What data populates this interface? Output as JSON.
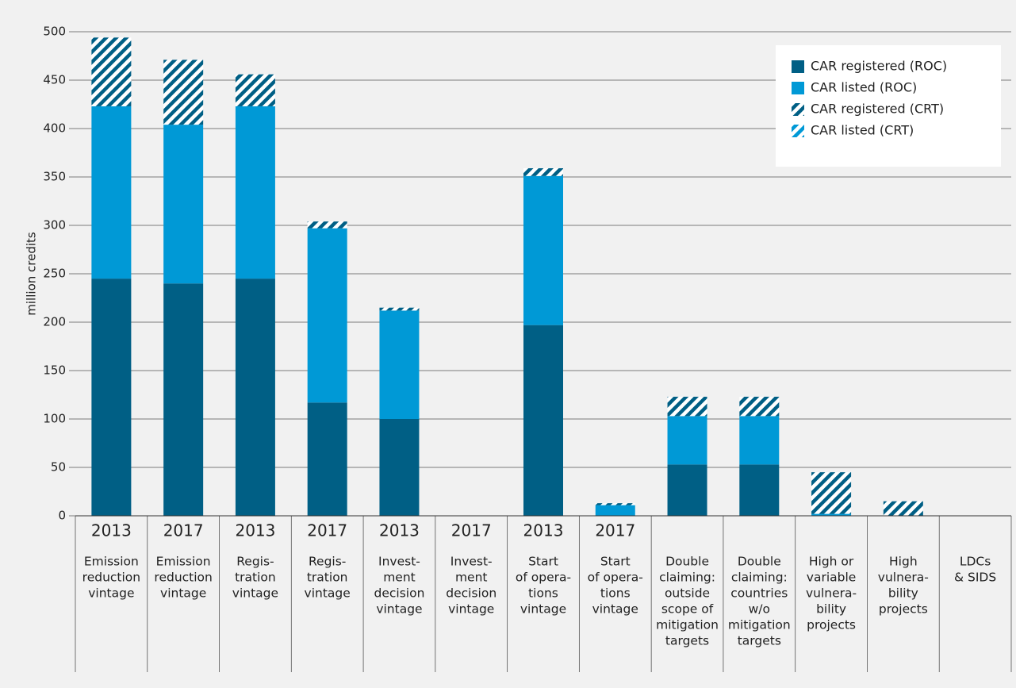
{
  "chart_data": {
    "type": "bar",
    "stacked": true,
    "ylabel": "million credits",
    "years": [
      2013,
      2017,
      2013,
      2017,
      2013,
      2017,
      2013,
      2017,
      null,
      null,
      null,
      null,
      null
    ],
    "categories": [
      [
        "Emission",
        "reduction",
        "vintage"
      ],
      [
        "Emission",
        "reduction",
        "vintage"
      ],
      [
        "Regis-",
        "tration",
        "vintage"
      ],
      [
        "Regis-",
        "tration",
        "vintage"
      ],
      [
        "Invest-",
        "ment",
        "decision",
        "vintage"
      ],
      [
        "Invest-",
        "ment",
        "decision",
        "vintage"
      ],
      [
        "Start",
        "of opera-",
        "tions",
        "vintage"
      ],
      [
        "Start",
        "of opera-",
        "tions",
        "vintage"
      ],
      [
        "Double",
        "claiming:",
        "outside",
        "scope of",
        "mitigation",
        "targets"
      ],
      [
        "Double",
        "claiming:",
        "countries",
        "w/o",
        "mitigation",
        "targets"
      ],
      [
        "High or",
        "variable",
        "vulnera-",
        "bility",
        "projects"
      ],
      [
        "High",
        "vulnera-",
        "bility",
        "projects"
      ],
      [
        "LDCs",
        "& SIDS"
      ]
    ],
    "series": [
      {
        "name": "CAR registered (ROC)",
        "color": "#005f85",
        "hatch": false,
        "values": [
          245,
          240,
          245,
          117,
          100,
          0,
          197,
          0,
          53,
          53,
          0,
          0,
          0
        ]
      },
      {
        "name": "CAR listed (ROC)",
        "color": "#0099d6",
        "hatch": false,
        "values": [
          178,
          164,
          178,
          180,
          112,
          0,
          154,
          11,
          50,
          50,
          2,
          0,
          0
        ]
      },
      {
        "name": "CAR registered (CRT)",
        "color": "#005f85",
        "hatch": true,
        "values": [
          71,
          67,
          33,
          7,
          3,
          0,
          8,
          2,
          20,
          20,
          43,
          15,
          0
        ]
      },
      {
        "name": "CAR listed (CRT)",
        "color": "#0099d6",
        "hatch": true,
        "values": [
          0,
          0,
          0,
          0,
          0,
          0,
          0,
          0,
          0,
          0,
          0,
          0,
          0
        ]
      }
    ],
    "ylim": [
      0,
      500
    ],
    "yticks": [
      0,
      50,
      100,
      150,
      200,
      250,
      300,
      350,
      400,
      450,
      500
    ],
    "grid": true,
    "legend": "upper right"
  }
}
